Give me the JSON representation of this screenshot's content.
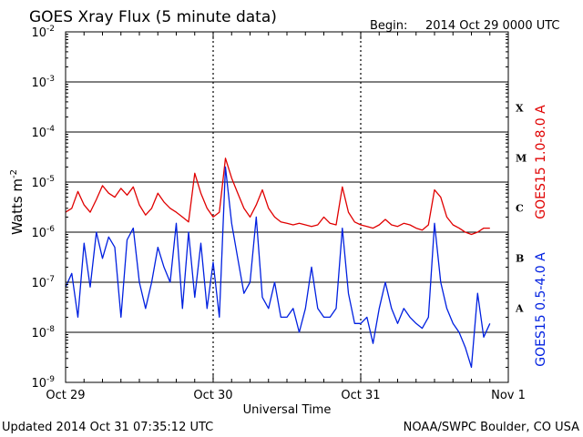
{
  "header": {
    "title": "GOES Xray Flux (5 minute data)",
    "begin_label": "Begin:",
    "begin_value": "2014 Oct 29 0000 UTC"
  },
  "footer": {
    "updated": "Updated 2014 Oct 31 07:35:12 UTC",
    "credit": "NOAA/SWPC Boulder, CO USA"
  },
  "colors": {
    "long_channel": "#e00000",
    "short_channel": "#0020e0",
    "axis": "#000000",
    "background": "#ffffff"
  },
  "chart_data": {
    "type": "line",
    "title": "GOES Xray Flux (5 minute data)",
    "xlabel": "Universal Time",
    "ylabel_base": "Watts m",
    "ylabel_exp": "-2",
    "yscale": "log",
    "ylim": [
      1e-09,
      0.01
    ],
    "xlim": [
      "2014 Oct 29 00:00",
      "2014 Nov 1 00:00"
    ],
    "xticks": [
      "Oct 29",
      "Oct 30",
      "Oct 31",
      "Nov 1"
    ],
    "yticks": [
      {
        "base": "10",
        "exp": "-2"
      },
      {
        "base": "10",
        "exp": "-3"
      },
      {
        "base": "10",
        "exp": "-4"
      },
      {
        "base": "10",
        "exp": "-5"
      },
      {
        "base": "10",
        "exp": "-6"
      },
      {
        "base": "10",
        "exp": "-7"
      },
      {
        "base": "10",
        "exp": "-8"
      },
      {
        "base": "10",
        "exp": "-9"
      }
    ],
    "flare_classes": [
      "X",
      "M",
      "C",
      "B",
      "A"
    ],
    "grid": "horizontal lines at each decade; dotted vertical lines at day boundaries",
    "series": [
      {
        "name": "GOES15 1.0-8.0 A",
        "color": "#e00000",
        "points": [
          [
            "Oct 29 00:00",
            2.5e-06
          ],
          [
            "Oct 29 01:00",
            3e-06
          ],
          [
            "Oct 29 02:00",
            6.5e-06
          ],
          [
            "Oct 29 03:00",
            3.5e-06
          ],
          [
            "Oct 29 04:00",
            2.5e-06
          ],
          [
            "Oct 29 05:00",
            4.5e-06
          ],
          [
            "Oct 29 06:00",
            8.5e-06
          ],
          [
            "Oct 29 07:00",
            6e-06
          ],
          [
            "Oct 29 08:00",
            5e-06
          ],
          [
            "Oct 29 09:00",
            7.5e-06
          ],
          [
            "Oct 29 10:00",
            5.5e-06
          ],
          [
            "Oct 29 11:00",
            8e-06
          ],
          [
            "Oct 29 12:00",
            3.5e-06
          ],
          [
            "Oct 29 13:00",
            2.2e-06
          ],
          [
            "Oct 29 14:00",
            3e-06
          ],
          [
            "Oct 29 15:00",
            6e-06
          ],
          [
            "Oct 29 16:00",
            4e-06
          ],
          [
            "Oct 29 17:00",
            3e-06
          ],
          [
            "Oct 29 18:00",
            2.5e-06
          ],
          [
            "Oct 29 19:00",
            2e-06
          ],
          [
            "Oct 29 20:00",
            1.6e-06
          ],
          [
            "Oct 29 21:00",
            1.5e-05
          ],
          [
            "Oct 29 22:00",
            6e-06
          ],
          [
            "Oct 29 23:00",
            3e-06
          ],
          [
            "Oct 30 00:00",
            2e-06
          ],
          [
            "Oct 30 01:00",
            2.5e-06
          ],
          [
            "Oct 30 02:00",
            3e-05
          ],
          [
            "Oct 30 03:00",
            1.2e-05
          ],
          [
            "Oct 30 04:00",
            6e-06
          ],
          [
            "Oct 30 05:00",
            3e-06
          ],
          [
            "Oct 30 06:00",
            2e-06
          ],
          [
            "Oct 30 07:00",
            3.5e-06
          ],
          [
            "Oct 30 08:00",
            7e-06
          ],
          [
            "Oct 30 09:00",
            3e-06
          ],
          [
            "Oct 30 10:00",
            2e-06
          ],
          [
            "Oct 30 11:00",
            1.6e-06
          ],
          [
            "Oct 30 12:00",
            1.5e-06
          ],
          [
            "Oct 30 13:00",
            1.4e-06
          ],
          [
            "Oct 30 14:00",
            1.5e-06
          ],
          [
            "Oct 30 15:00",
            1.4e-06
          ],
          [
            "Oct 30 16:00",
            1.3e-06
          ],
          [
            "Oct 30 17:00",
            1.4e-06
          ],
          [
            "Oct 30 18:00",
            2e-06
          ],
          [
            "Oct 30 19:00",
            1.5e-06
          ],
          [
            "Oct 30 20:00",
            1.4e-06
          ],
          [
            "Oct 30 21:00",
            8e-06
          ],
          [
            "Oct 30 22:00",
            2.5e-06
          ],
          [
            "Oct 30 23:00",
            1.6e-06
          ],
          [
            "Oct 31 00:00",
            1.4e-06
          ],
          [
            "Oct 31 01:00",
            1.3e-06
          ],
          [
            "Oct 31 02:00",
            1.2e-06
          ],
          [
            "Oct 31 03:00",
            1.4e-06
          ],
          [
            "Oct 31 04:00",
            1.8e-06
          ],
          [
            "Oct 31 05:00",
            1.4e-06
          ],
          [
            "Oct 31 06:00",
            1.3e-06
          ],
          [
            "Oct 31 07:00",
            1.5e-06
          ],
          [
            "Oct 31 08:00",
            1.4e-06
          ],
          [
            "Oct 31 09:00",
            1.2e-06
          ],
          [
            "Oct 31 10:00",
            1.1e-06
          ],
          [
            "Oct 31 11:00",
            1.4e-06
          ],
          [
            "Oct 31 12:00",
            7e-06
          ],
          [
            "Oct 31 13:00",
            5e-06
          ],
          [
            "Oct 31 14:00",
            2e-06
          ],
          [
            "Oct 31 15:00",
            1.4e-06
          ],
          [
            "Oct 31 16:00",
            1.2e-06
          ],
          [
            "Oct 31 17:00",
            1e-06
          ],
          [
            "Oct 31 18:00",
            9e-07
          ],
          [
            "Oct 31 19:00",
            1e-06
          ],
          [
            "Oct 31 20:00",
            1.2e-06
          ],
          [
            "Oct 31 21:00",
            1.2e-06
          ]
        ]
      },
      {
        "name": "GOES15 0.5-4.0 A",
        "color": "#0020e0",
        "points": [
          [
            "Oct 29 00:00",
            8e-08
          ],
          [
            "Oct 29 01:00",
            1.5e-07
          ],
          [
            "Oct 29 02:00",
            2e-08
          ],
          [
            "Oct 29 03:00",
            6e-07
          ],
          [
            "Oct 29 04:00",
            8e-08
          ],
          [
            "Oct 29 05:00",
            1e-06
          ],
          [
            "Oct 29 06:00",
            3e-07
          ],
          [
            "Oct 29 07:00",
            8e-07
          ],
          [
            "Oct 29 08:00",
            5e-07
          ],
          [
            "Oct 29 09:00",
            2e-08
          ],
          [
            "Oct 29 10:00",
            7e-07
          ],
          [
            "Oct 29 11:00",
            1.2e-06
          ],
          [
            "Oct 29 12:00",
            1e-07
          ],
          [
            "Oct 29 13:00",
            3e-08
          ],
          [
            "Oct 29 14:00",
            1e-07
          ],
          [
            "Oct 29 15:00",
            5e-07
          ],
          [
            "Oct 29 16:00",
            2e-07
          ],
          [
            "Oct 29 17:00",
            1e-07
          ],
          [
            "Oct 29 18:00",
            1.5e-06
          ],
          [
            "Oct 29 19:00",
            3e-08
          ],
          [
            "Oct 29 20:00",
            1e-06
          ],
          [
            "Oct 29 21:00",
            5e-08
          ],
          [
            "Oct 29 22:00",
            6e-07
          ],
          [
            "Oct 29 23:00",
            3e-08
          ],
          [
            "Oct 30 00:00",
            2.5e-07
          ],
          [
            "Oct 30 01:00",
            2e-08
          ],
          [
            "Oct 30 02:00",
            2e-05
          ],
          [
            "Oct 30 03:00",
            1.5e-06
          ],
          [
            "Oct 30 04:00",
            3e-07
          ],
          [
            "Oct 30 05:00",
            6e-08
          ],
          [
            "Oct 30 06:00",
            1e-07
          ],
          [
            "Oct 30 07:00",
            2e-06
          ],
          [
            "Oct 30 08:00",
            5e-08
          ],
          [
            "Oct 30 09:00",
            3e-08
          ],
          [
            "Oct 30 10:00",
            1e-07
          ],
          [
            "Oct 30 11:00",
            2e-08
          ],
          [
            "Oct 30 12:00",
            2e-08
          ],
          [
            "Oct 30 13:00",
            3e-08
          ],
          [
            "Oct 30 14:00",
            1e-08
          ],
          [
            "Oct 30 15:00",
            3e-08
          ],
          [
            "Oct 30 16:00",
            2e-07
          ],
          [
            "Oct 30 17:00",
            3e-08
          ],
          [
            "Oct 30 18:00",
            2e-08
          ],
          [
            "Oct 30 19:00",
            2e-08
          ],
          [
            "Oct 30 20:00",
            3e-08
          ],
          [
            "Oct 30 21:00",
            1.2e-06
          ],
          [
            "Oct 30 22:00",
            6e-08
          ],
          [
            "Oct 30 23:00",
            1.5e-08
          ],
          [
            "Oct 31 00:00",
            1.5e-08
          ],
          [
            "Oct 31 01:00",
            2e-08
          ],
          [
            "Oct 31 02:00",
            6e-09
          ],
          [
            "Oct 31 03:00",
            3e-08
          ],
          [
            "Oct 31 04:00",
            1e-07
          ],
          [
            "Oct 31 05:00",
            3e-08
          ],
          [
            "Oct 31 06:00",
            1.5e-08
          ],
          [
            "Oct 31 07:00",
            3e-08
          ],
          [
            "Oct 31 08:00",
            2e-08
          ],
          [
            "Oct 31 09:00",
            1.5e-08
          ],
          [
            "Oct 31 10:00",
            1.2e-08
          ],
          [
            "Oct 31 11:00",
            2e-08
          ],
          [
            "Oct 31 12:00",
            1.5e-06
          ],
          [
            "Oct 31 13:00",
            1e-07
          ],
          [
            "Oct 31 14:00",
            3e-08
          ],
          [
            "Oct 31 15:00",
            1.5e-08
          ],
          [
            "Oct 31 16:00",
            1e-08
          ],
          [
            "Oct 31 17:00",
            5e-09
          ],
          [
            "Oct 31 18:00",
            2e-09
          ],
          [
            "Oct 31 19:00",
            6e-08
          ],
          [
            "Oct 31 20:00",
            8e-09
          ],
          [
            "Oct 31 21:00",
            1.5e-08
          ]
        ]
      }
    ]
  }
}
